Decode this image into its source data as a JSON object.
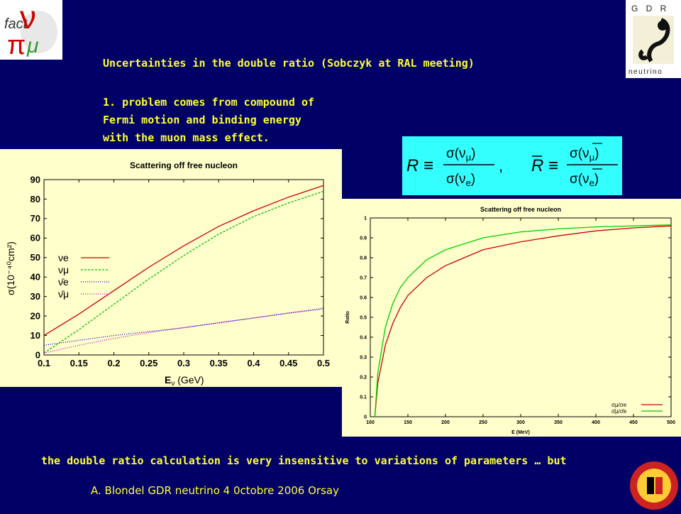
{
  "slide": {
    "title": "Uncertainties in the double ratio (Sobczyk at RAL meeting)",
    "point1_line1": "1. problem comes from compound of",
    "point1_line2": "Fermi motion and binding energy",
    "point1_line3": "with the muon mass effect.",
    "conclusion": "the double ratio calculation is very insensitive to variations of parameters … but",
    "footer": "A. Blondel GDR neutrino 4 0ctobre 2006 Orsay"
  },
  "logos": {
    "left_text": "fact",
    "right_top": "G D R",
    "right_bottom": "neutrino"
  },
  "formula": {
    "lhs": "R ≡",
    "lhs_bar": "R ≡",
    "sigma_num": "σ(ν",
    "sigma_den": "σ(ν",
    "mu": "μ",
    "e": "e",
    "close": ")",
    "comma": ","
  },
  "chart_data": [
    {
      "type": "line",
      "title": "Scattering off free nucleon",
      "xlabel": "E",
      "xlabel_sub": "ν",
      "xlabel_unit": " (GeV)",
      "ylabel": "σ(10⁻⁴⁰cm²)",
      "xlim": [
        0.1,
        0.5
      ],
      "ylim": [
        0,
        90
      ],
      "xticks": [
        0.1,
        0.15,
        0.2,
        0.25,
        0.3,
        0.35,
        0.4,
        0.45,
        0.5
      ],
      "xtick_labels": [
        "0.1",
        "0.15",
        "0.2",
        "0.25",
        "0.3",
        "0.35",
        "0.4",
        "0.45",
        "0.5"
      ],
      "yticks": [
        0,
        10,
        20,
        30,
        40,
        50,
        60,
        70,
        80,
        90
      ],
      "legend": "left",
      "series": [
        {
          "name": "νe",
          "color": "#cc0000",
          "dash": "none",
          "x": [
            0.1,
            0.15,
            0.2,
            0.25,
            0.3,
            0.35,
            0.4,
            0.45,
            0.5
          ],
          "y": [
            10,
            21,
            33,
            45,
            56,
            66,
            74,
            81,
            87
          ]
        },
        {
          "name": "νμ",
          "color": "#00bb00",
          "dash": "3,2",
          "x": [
            0.1,
            0.15,
            0.2,
            0.25,
            0.3,
            0.35,
            0.4,
            0.45,
            0.5
          ],
          "y": [
            1,
            13,
            26,
            39,
            51,
            62,
            71,
            78,
            84
          ]
        },
        {
          "name": "ν̄e",
          "color": "#0000cc",
          "dash": "1,2",
          "x": [
            0.1,
            0.15,
            0.2,
            0.25,
            0.3,
            0.35,
            0.4,
            0.45,
            0.5
          ],
          "y": [
            5,
            7.5,
            10,
            12,
            14,
            16.5,
            19,
            21.5,
            24
          ]
        },
        {
          "name": "ν̄μ",
          "color": "#cc00cc",
          "dash": "1,2",
          "x": [
            0.1,
            0.15,
            0.2,
            0.25,
            0.3,
            0.35,
            0.4,
            0.45,
            0.5
          ],
          "y": [
            1,
            5,
            8.5,
            11.5,
            14,
            16.5,
            19,
            21.5,
            23.5
          ]
        }
      ]
    },
    {
      "type": "line",
      "title": "Scattering off free nucleon",
      "xlabel": "E (MeV)",
      "ylabel": "Ratio",
      "xlim": [
        100,
        500
      ],
      "ylim": [
        0,
        1
      ],
      "xticks": [
        100,
        150,
        200,
        250,
        300,
        350,
        400,
        450,
        500
      ],
      "yticks": [
        0,
        0.1,
        0.2,
        0.3,
        0.4,
        0.5,
        0.6,
        0.7,
        0.8,
        0.9,
        1
      ],
      "ytick_labels": [
        "0",
        "0.1",
        "0.2",
        "0.3",
        "0.4",
        "0.5",
        "0.6",
        "0.7",
        "0.8",
        "0.9",
        "1"
      ],
      "legend": "bottom-right",
      "series": [
        {
          "name": "σμ/σe",
          "color": "#cc0000",
          "x": [
            106,
            110,
            120,
            130,
            140,
            150,
            175,
            200,
            250,
            300,
            350,
            400,
            450,
            500
          ],
          "y": [
            0,
            0.17,
            0.36,
            0.47,
            0.55,
            0.61,
            0.7,
            0.76,
            0.84,
            0.88,
            0.91,
            0.935,
            0.95,
            0.96
          ]
        },
        {
          "name": "σ̄μ/σ̄e",
          "color": "#00cc00",
          "x": [
            106,
            110,
            120,
            130,
            140,
            150,
            175,
            200,
            250,
            300,
            350,
            400,
            450,
            500
          ],
          "y": [
            0,
            0.22,
            0.45,
            0.57,
            0.65,
            0.7,
            0.79,
            0.84,
            0.9,
            0.93,
            0.945,
            0.955,
            0.96,
            0.965
          ]
        }
      ]
    }
  ]
}
